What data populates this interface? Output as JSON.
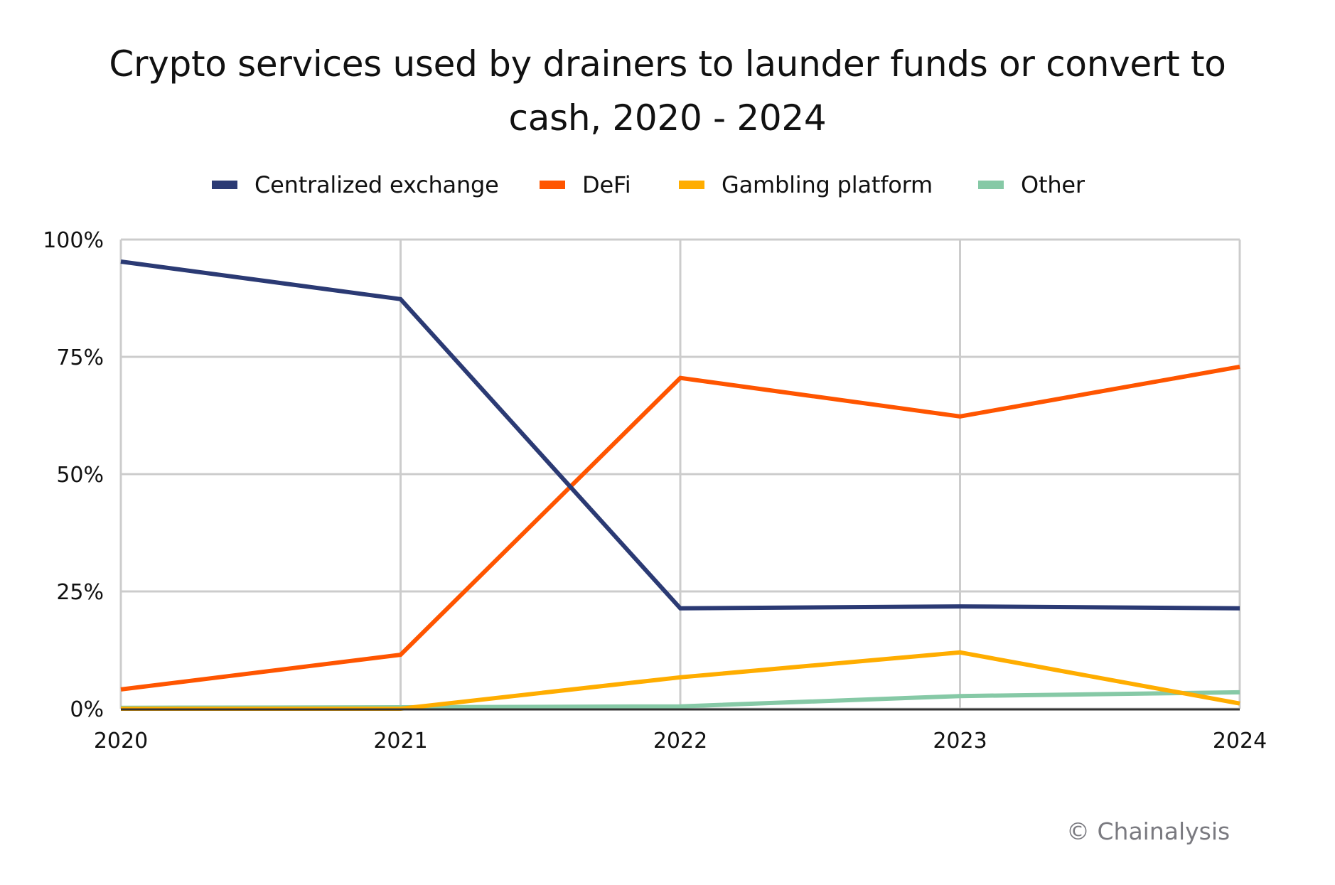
{
  "chart_data": {
    "type": "line",
    "title": "Crypto services used by drainers to launder funds or convert to cash, 2020 - 2024",
    "title_lines": [
      "Crypto services used by drainers to launder funds or convert to",
      "cash, 2020 - 2024"
    ],
    "xlabel": "",
    "ylabel": "",
    "x": [
      "2020",
      "2021",
      "2022",
      "2023",
      "2024"
    ],
    "ylim": [
      0,
      100
    ],
    "yticks": [
      0,
      25,
      50,
      75,
      100
    ],
    "ytick_labels": [
      "0%",
      "25%",
      "50%",
      "75%",
      "100%"
    ],
    "grid": true,
    "legend_position": "top",
    "series": [
      {
        "name": "Centralized exchange",
        "color": "#2b3a74",
        "values": [
          95.3,
          87.3,
          21.4,
          21.8,
          21.4
        ]
      },
      {
        "name": "DeFi",
        "color": "#ff5500",
        "values": [
          4.1,
          11.5,
          70.5,
          62.3,
          72.9
        ]
      },
      {
        "name": "Gambling platform",
        "color": "#ffad00",
        "values": [
          0.0,
          0.0,
          6.7,
          12.0,
          1.1
        ]
      },
      {
        "name": "Other",
        "color": "#86c9a6",
        "values": [
          0.2,
          0.3,
          0.5,
          2.7,
          3.5
        ]
      }
    ]
  },
  "footer": {
    "copyright": "© Chainalysis"
  }
}
